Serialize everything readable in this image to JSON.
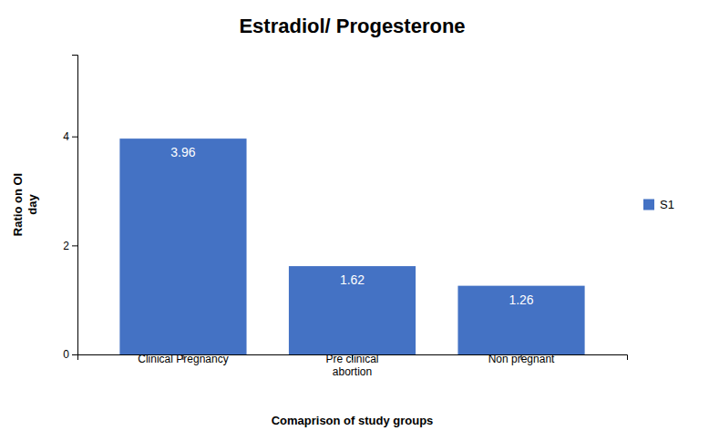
{
  "chart_data": {
    "type": "bar",
    "title": "Estradiol/ Progesterone",
    "xlabel": "Comaprison of study groups",
    "ylabel": "Ratio on OI\nday",
    "categories": [
      "Clinical Pregnancy",
      "Pre clinical\nabortion",
      "Non pregnant"
    ],
    "series": [
      {
        "name": "S1",
        "color": "#4472C4",
        "values": [
          3.96,
          1.62,
          1.26
        ]
      }
    ],
    "ylim": [
      0,
      5.5
    ],
    "yticks": [
      0,
      2,
      4
    ],
    "data_labels": true,
    "legend": "right",
    "grid": false
  }
}
